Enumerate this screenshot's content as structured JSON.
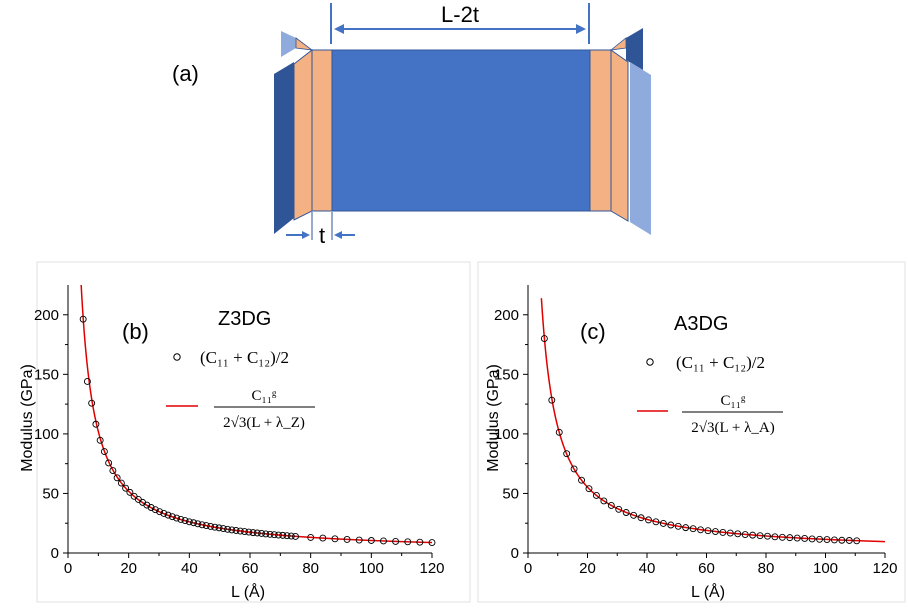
{
  "panel_a": {
    "label": "(a)",
    "length_label": "L-2t",
    "thickness_label": "t",
    "colors": {
      "body": "#4472C4",
      "edge": "#F4B183",
      "dark": "#2F5597",
      "light": "#8FAADC",
      "outline": "#2F5597"
    }
  },
  "chart_data": [
    {
      "type": "scatter",
      "panel_label": "(b)",
      "title": "Z3DG",
      "xlabel": "L (Å)",
      "ylabel": "Modulus (GPa)",
      "xlim": [
        0,
        120
      ],
      "ylim": [
        0,
        225
      ],
      "xticks": [
        "0",
        "20",
        "40",
        "60",
        "80",
        "100",
        "120"
      ],
      "yticks": [
        "0",
        "50",
        "100",
        "150",
        "200"
      ],
      "grid": false,
      "legend_position": "top-right",
      "legend": {
        "points": "(C₁₁ + C₁₂)/2",
        "curve_num": "C₁₁ᵍ",
        "curve_den": "2√3(L + λ_Z)"
      },
      "series": [
        {
          "kind": "points",
          "name": "(C11 + C12)/2",
          "x": [
            5.0,
            6.4,
            7.8,
            9.2,
            10.6,
            12.0,
            13.4,
            14.8,
            16.2,
            17.6,
            19.0,
            20.4,
            21.8,
            23.2,
            24.6,
            26.0,
            27.4,
            28.8,
            30.2,
            31.6,
            33.0,
            34.4,
            35.8,
            37.2,
            38.6,
            40.0,
            41.4,
            42.8,
            44.2,
            45.6,
            47.0,
            48.4,
            49.8,
            51.2,
            52.6,
            54.0,
            55.4,
            56.8,
            58.2,
            59.6,
            61.0,
            62.4,
            63.8,
            65.2,
            66.6,
            68.0,
            69.4,
            70.8,
            72.2,
            73.6,
            75.0,
            80,
            84,
            88,
            92,
            96,
            100,
            104,
            108,
            112,
            116,
            120
          ],
          "y": [
            196.3,
            144.0,
            125.8,
            108.1,
            94.6,
            85.2,
            75.6,
            69.2,
            63.1,
            58.7,
            54.4,
            50.9,
            47.6,
            45.0,
            42.5,
            40.2,
            38.2,
            36.4,
            34.7,
            33.2,
            31.8,
            30.5,
            29.3,
            28.2,
            27.2,
            26.2,
            25.4,
            24.5,
            23.7,
            23.0,
            22.3,
            21.7,
            21.1,
            20.5,
            19.9,
            19.4,
            18.9,
            18.4,
            18.0,
            17.6,
            17.1,
            16.8,
            16.4,
            16.0,
            15.7,
            15.4,
            15.1,
            14.8,
            14.5,
            14.2,
            13.9,
            13.1,
            12.5,
            11.9,
            11.4,
            10.9,
            10.5,
            10.1,
            9.7,
            9.4,
            9.1,
            8.8
          ]
        },
        {
          "kind": "curve",
          "name": "C11g / (2√3(L + λZ))",
          "coef": 1055,
          "lambda": 0.35,
          "x_range": [
            4.2,
            120
          ]
        }
      ]
    },
    {
      "type": "scatter",
      "panel_label": "(c)",
      "title": "A3DG",
      "xlabel": "L (Å)",
      "ylabel": "Modulus (GPa)",
      "xlim": [
        0,
        120
      ],
      "ylim": [
        0,
        225
      ],
      "xticks": [
        "0",
        "20",
        "40",
        "60",
        "80",
        "100",
        "120"
      ],
      "yticks": [
        "0",
        "50",
        "100",
        "150",
        "200"
      ],
      "grid": false,
      "legend_position": "top-right",
      "legend": {
        "points": "(C₁₁ + C₁₂)/2",
        "curve_num": "C₁₁ᵍ",
        "curve_den": "2√3(L + λ_A)"
      },
      "series": [
        {
          "kind": "points",
          "name": "(C11 + C12)/2",
          "x": [
            5.5,
            8.0,
            10.5,
            13.0,
            15.5,
            18.0,
            20.5,
            23.0,
            25.5,
            28.0,
            30.5,
            33.0,
            35.5,
            38.0,
            40.5,
            43.0,
            45.5,
            48.0,
            50.5,
            53.0,
            55.5,
            58.0,
            60.5,
            63.0,
            65.5,
            68.0,
            70.5,
            73.0,
            75.5,
            78.0,
            80.5,
            83.0,
            85.5,
            88.0,
            90.5,
            93.0,
            95.5,
            98.0,
            100.5,
            103.0,
            105.5,
            108.0,
            110.5
          ],
          "y": [
            180.0,
            128.3,
            101.3,
            83.4,
            70.6,
            61.1,
            54.0,
            48.3,
            43.7,
            39.9,
            36.7,
            34.0,
            31.6,
            29.6,
            27.8,
            26.2,
            24.8,
            23.5,
            22.4,
            21.3,
            20.4,
            19.5,
            18.7,
            18.0,
            17.3,
            16.7,
            16.1,
            15.5,
            15.0,
            14.5,
            14.1,
            13.6,
            13.2,
            12.9,
            12.5,
            12.2,
            11.8,
            11.5,
            11.3,
            11.0,
            10.7,
            10.5,
            10.2
          ]
        },
        {
          "kind": "curve",
          "name": "C11g / (2√3(L + λA))",
          "coef": 1155,
          "lambda": 0.9,
          "x_range": [
            4.5,
            120
          ]
        }
      ]
    }
  ]
}
